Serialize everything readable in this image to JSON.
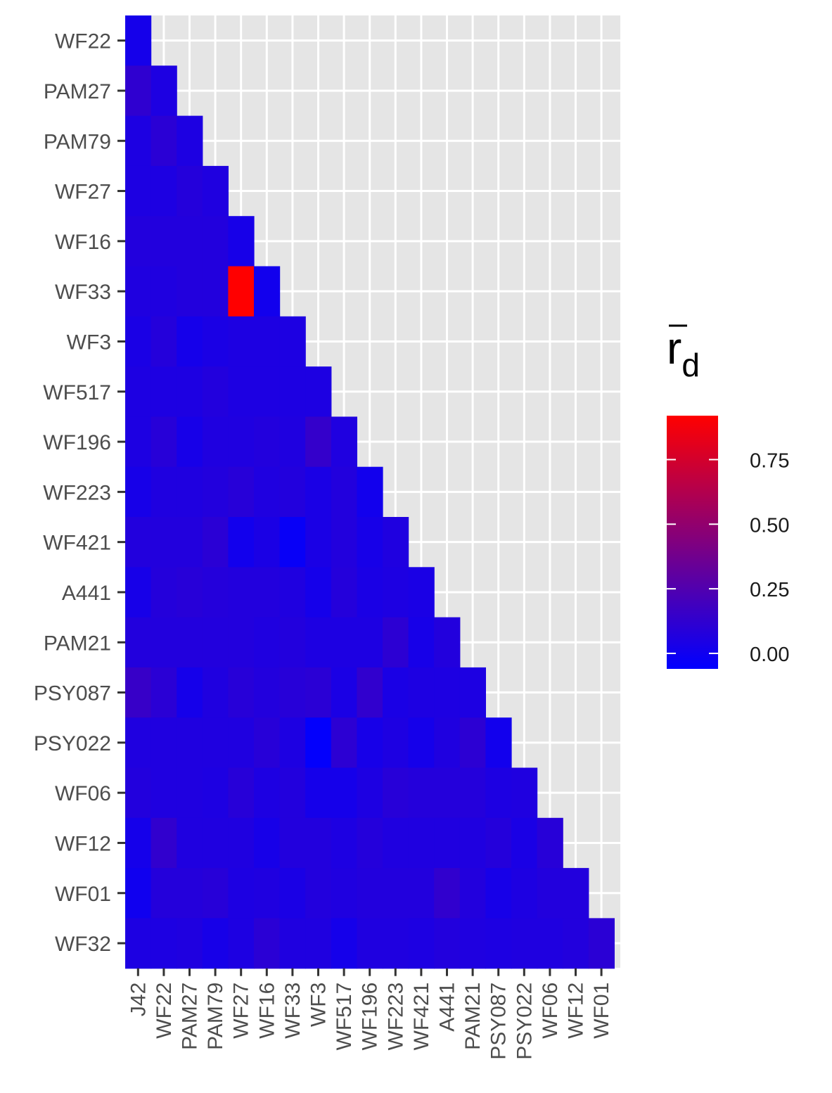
{
  "chart_data": {
    "type": "heatmap",
    "title": "",
    "xlabel": "",
    "ylabel": "",
    "x_categories": [
      "J42",
      "WF22",
      "PAM27",
      "PAM79",
      "WF27",
      "WF16",
      "WF33",
      "WF3",
      "WF517",
      "WF196",
      "WF223",
      "WF421",
      "A441",
      "PAM21",
      "PSY087",
      "PSY022",
      "WF06",
      "WF12",
      "WF01"
    ],
    "y_categories": [
      "WF22",
      "PAM27",
      "PAM79",
      "WF27",
      "WF16",
      "WF33",
      "WF3",
      "WF517",
      "WF196",
      "WF223",
      "WF421",
      "A441",
      "PAM21",
      "PSY087",
      "PSY022",
      "WF06",
      "WF12",
      "WF01",
      "WF32"
    ],
    "values": [
      [
        0.02
      ],
      [
        0.12,
        0.05
      ],
      [
        0.05,
        0.1,
        0.05
      ],
      [
        0.05,
        0.05,
        0.08,
        0.06
      ],
      [
        0.07,
        0.07,
        0.07,
        0.07,
        0.03
      ],
      [
        0.06,
        0.06,
        0.07,
        0.07,
        0.92,
        0.01
      ],
      [
        0.04,
        0.08,
        0.02,
        0.04,
        0.05,
        0.05,
        0.05
      ],
      [
        0.05,
        0.05,
        0.05,
        0.07,
        0.05,
        0.05,
        0.05,
        0.05
      ],
      [
        0.05,
        0.09,
        0.03,
        0.06,
        0.06,
        0.07,
        0.06,
        0.14,
        0.06
      ],
      [
        0.03,
        0.06,
        0.06,
        0.07,
        0.09,
        0.06,
        0.07,
        0.04,
        0.07,
        0.01
      ],
      [
        0.07,
        0.07,
        0.07,
        0.1,
        0.01,
        0.04,
        -0.03,
        0.04,
        0.07,
        0.03,
        0.06
      ],
      [
        0.03,
        0.08,
        0.09,
        0.08,
        0.07,
        0.07,
        0.06,
        0.02,
        0.08,
        0.04,
        0.05,
        0.04
      ],
      [
        0.07,
        0.07,
        0.07,
        0.07,
        0.07,
        0.06,
        0.07,
        0.05,
        0.05,
        0.05,
        0.11,
        0.03,
        0.07
      ],
      [
        0.15,
        0.1,
        0.02,
        0.06,
        0.09,
        0.07,
        0.09,
        0.1,
        0.04,
        0.13,
        0.04,
        0.05,
        0.05,
        0.05
      ],
      [
        0.06,
        0.06,
        0.06,
        0.06,
        0.06,
        0.09,
        0.05,
        -0.05,
        0.11,
        0.03,
        0.05,
        0.02,
        0.06,
        0.11,
        0.01
      ],
      [
        0.07,
        0.06,
        0.06,
        0.05,
        0.09,
        0.05,
        0.07,
        0.02,
        0.02,
        0.05,
        0.09,
        0.08,
        0.08,
        0.08,
        0.05,
        0.06
      ],
      [
        0.02,
        0.13,
        0.06,
        0.06,
        0.06,
        0.03,
        0.07,
        0.07,
        0.05,
        0.08,
        0.06,
        0.06,
        0.06,
        0.06,
        0.08,
        0.04,
        0.09
      ],
      [
        0.0,
        0.08,
        0.08,
        0.09,
        0.05,
        0.06,
        0.04,
        0.07,
        0.06,
        0.07,
        0.07,
        0.07,
        0.13,
        0.07,
        0.03,
        0.05,
        0.07,
        0.07
      ],
      [
        0.05,
        0.05,
        0.06,
        0.03,
        0.05,
        0.1,
        0.06,
        0.06,
        0.02,
        0.06,
        0.06,
        0.05,
        0.07,
        0.06,
        0.05,
        0.06,
        0.06,
        0.07,
        0.1
      ]
    ],
    "color_scale": {
      "low_color": "#0000ff",
      "high_color": "#ff0000",
      "domain": [
        -0.06,
        0.92
      ]
    },
    "legend": {
      "title_main": "r",
      "title_subscript": "d",
      "placement": "right",
      "breaks": [
        0.0,
        0.25,
        0.5,
        0.75
      ],
      "break_labels": [
        "0.00",
        "0.25",
        "0.50",
        "0.75"
      ]
    },
    "grid": true,
    "panel_background": "#e5e5e5"
  }
}
